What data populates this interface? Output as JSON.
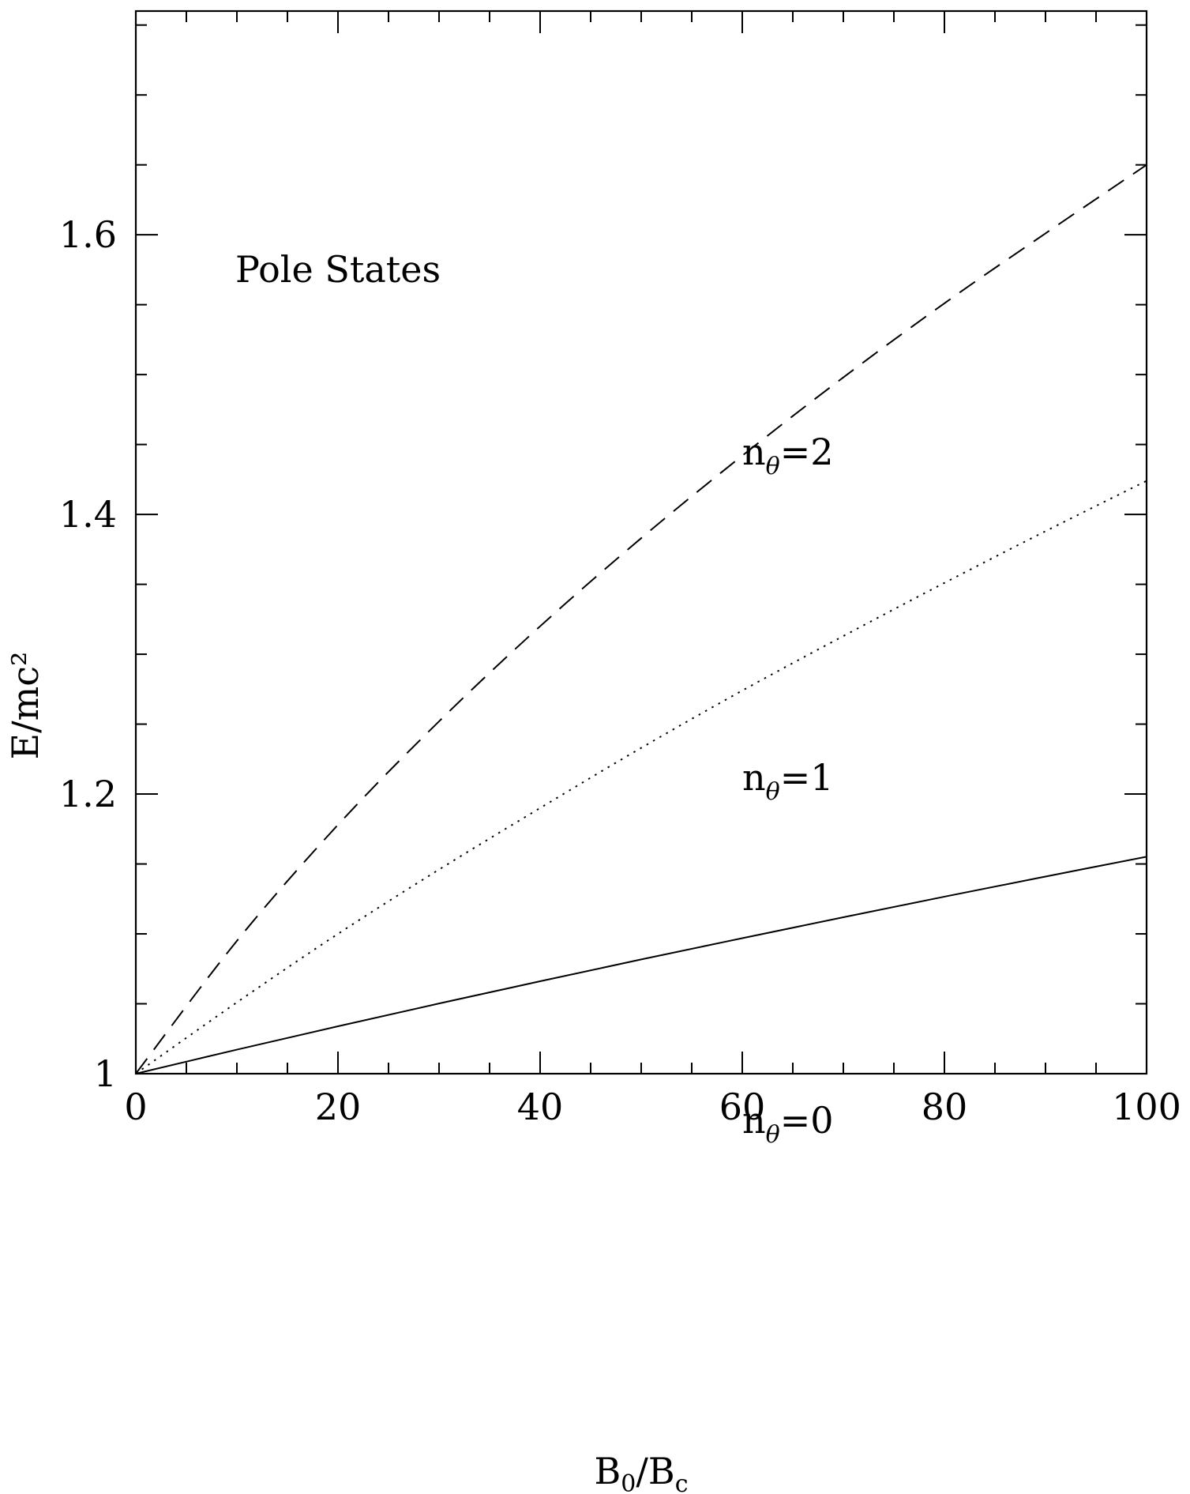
{
  "chart_data": {
    "type": "line",
    "title": "",
    "annotation": "Pole States",
    "xlabel": {
      "main": "B",
      "sub1": "0",
      "mid": "/B",
      "sub2": "c"
    },
    "ylabel": "E/mc²",
    "xlim": [
      0,
      100
    ],
    "ylim": [
      1.0,
      1.76
    ],
    "x_ticks": [
      "0",
      "20",
      "40",
      "60",
      "80",
      "100"
    ],
    "y_ticks": [
      "1",
      "1.2",
      "1.4",
      "1.6"
    ],
    "grid": false,
    "legend": "none",
    "series": [
      {
        "label": {
          "main": "n",
          "sub": "θ",
          "rest": "=0"
        },
        "style": "solid",
        "x": [
          0,
          10,
          20,
          30,
          40,
          50,
          60,
          70,
          80,
          90,
          100
        ],
        "y": [
          1.0,
          1.0172,
          1.0339,
          1.0502,
          1.0661,
          1.0817,
          1.0969,
          1.1119,
          1.1266,
          1.141,
          1.1552
        ]
      },
      {
        "label": {
          "main": "n",
          "sub": "θ",
          "rest": "=1"
        },
        "style": "dotted",
        "x": [
          0,
          10,
          20,
          30,
          40,
          50,
          60,
          70,
          80,
          90,
          100
        ],
        "y": [
          1.0,
          1.051,
          1.1,
          1.146,
          1.19,
          1.233,
          1.274,
          1.313,
          1.351,
          1.388,
          1.424
        ]
      },
      {
        "label": {
          "main": "n",
          "sub": "θ",
          "rest": "=2"
        },
        "style": "dashed",
        "x": [
          0,
          10,
          20,
          30,
          40,
          50,
          60,
          70,
          80,
          90,
          100
        ],
        "y": [
          1.0,
          1.095,
          1.178,
          1.252,
          1.32,
          1.383,
          1.442,
          1.498,
          1.551,
          1.601,
          1.65
        ]
      }
    ]
  }
}
